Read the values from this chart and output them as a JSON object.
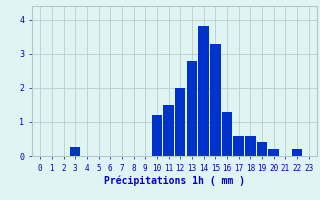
{
  "categories": [
    0,
    1,
    2,
    3,
    4,
    5,
    6,
    7,
    8,
    9,
    10,
    11,
    12,
    13,
    14,
    15,
    16,
    17,
    18,
    19,
    20,
    21,
    22,
    23
  ],
  "values": [
    0,
    0,
    0,
    0.25,
    0,
    0,
    0,
    0,
    0,
    0,
    1.2,
    1.5,
    2.0,
    2.8,
    3.8,
    3.3,
    1.3,
    0.6,
    0.6,
    0.4,
    0.2,
    0,
    0.2,
    0
  ],
  "bar_color": "#0033cc",
  "bg_color": "#e0f4f4",
  "grid_color": "#b0c8c8",
  "axis_color": "#0000cc",
  "xlabel": "Précipitations 1h ( mm )",
  "ylim": [
    0,
    4.4
  ],
  "yticks": [
    0,
    1,
    2,
    3,
    4
  ],
  "label_fontsize": 7,
  "tick_fontsize": 5.5
}
